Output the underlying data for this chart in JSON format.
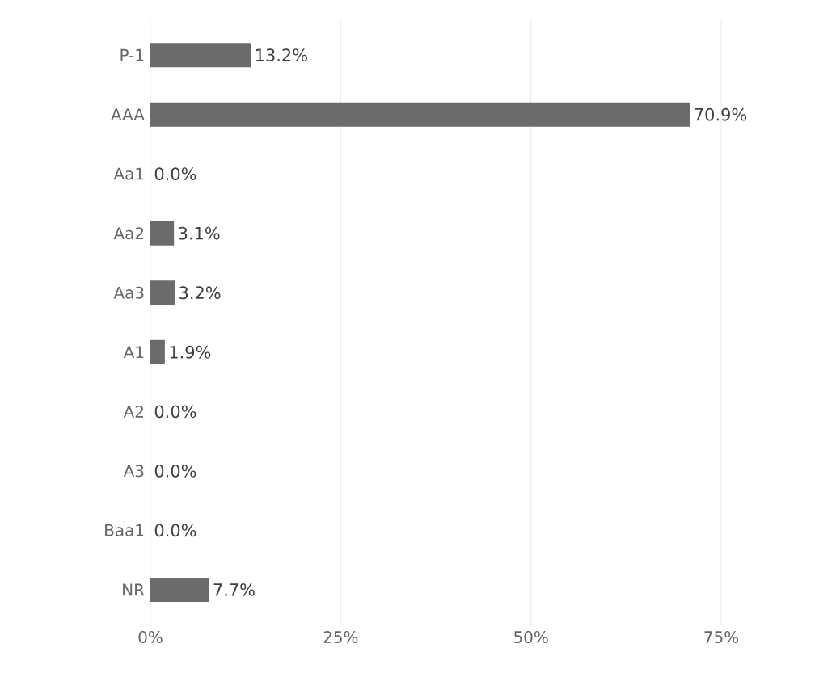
{
  "chart_data": {
    "type": "bar",
    "orientation": "horizontal",
    "categories": [
      "P-1",
      "AAA",
      "Aa1",
      "Aa2",
      "Aa3",
      "A1",
      "A2",
      "A3",
      "Baa1",
      "NR"
    ],
    "values": [
      13.2,
      70.9,
      0.0,
      3.1,
      3.2,
      1.9,
      0.0,
      0.0,
      0.0,
      7.7
    ],
    "value_labels": [
      "13.2%",
      "70.9%",
      "0.0%",
      "3.1%",
      "3.2%",
      "1.9%",
      "0.0%",
      "0.0%",
      "0.0%",
      "7.7%"
    ],
    "color": "#6b6b6b",
    "xlim": [
      0,
      75
    ],
    "xticks": [
      {
        "value": 0,
        "label": "0%"
      },
      {
        "value": 25,
        "label": "25%"
      },
      {
        "value": 50,
        "label": "50%"
      },
      {
        "value": 75,
        "label": "75%"
      }
    ],
    "grid": "x"
  }
}
